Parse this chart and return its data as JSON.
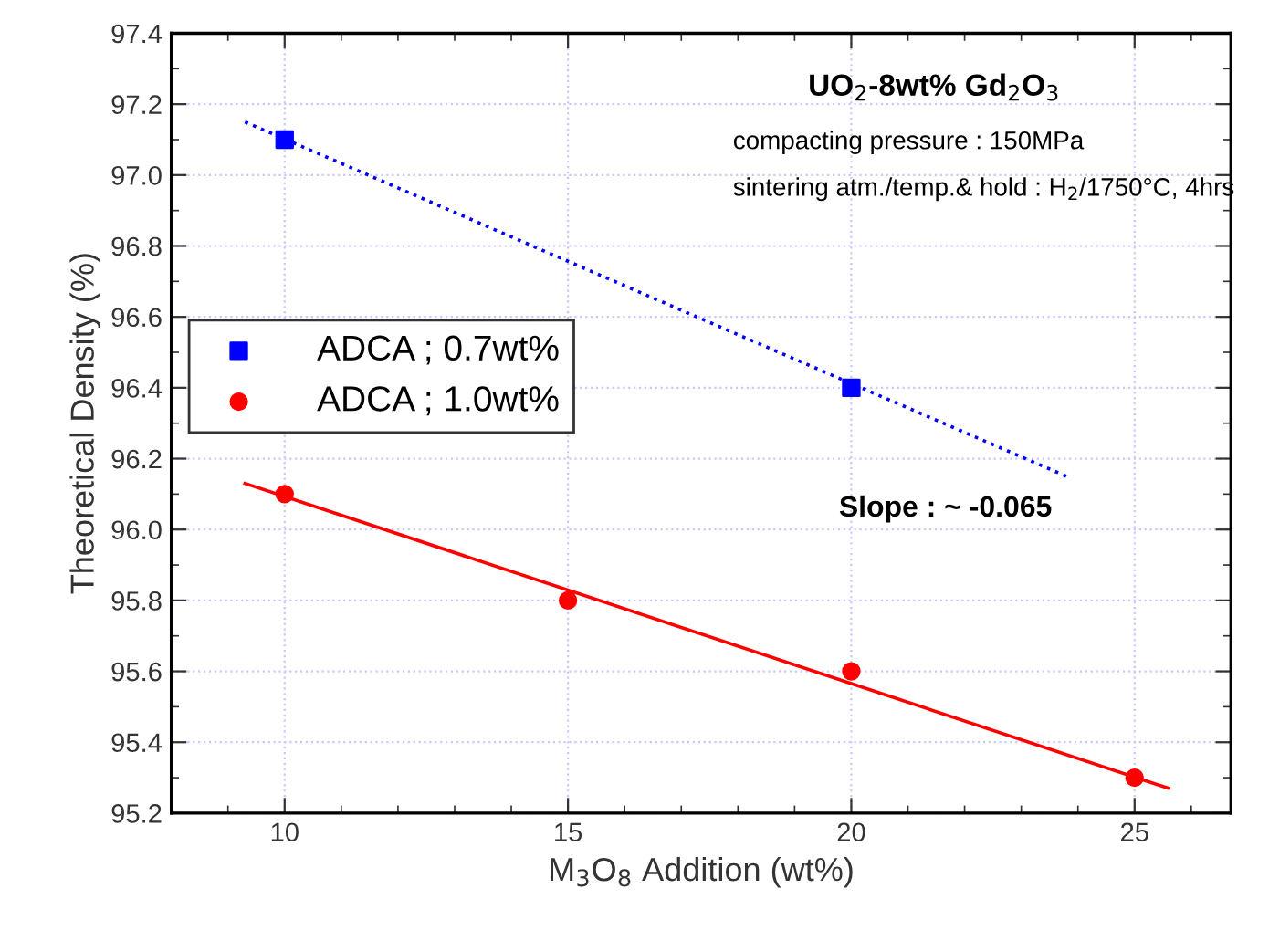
{
  "chart_data": {
    "type": "scatter",
    "xlabel": "M$_{3}$O$_{8}$ Addition (wt%)",
    "ylabel": "Theoretical Density (%)",
    "xlim": [
      8,
      26.7
    ],
    "xticks": [
      10,
      15,
      20,
      25
    ],
    "ylim": [
      95.2,
      97.4
    ],
    "yticks": [
      95.2,
      95.4,
      95.6,
      95.8,
      {
        "value": 96,
        "label": "96.0"
      },
      96.2,
      96.4,
      96.6,
      96.8,
      {
        "value": 97,
        "label": "97.0"
      },
      97.2,
      97.4
    ],
    "grid": true,
    "legend": "left",
    "series": [
      {
        "name": "ADCA ; 0.7wt%",
        "color": "#0000ff",
        "marker": "square",
        "x": [
          10,
          20
        ],
        "values": [
          97.1,
          96.4
        ]
      },
      {
        "name": "ADCA ; 1.0wt%",
        "color": "#ff0000",
        "marker": "circle",
        "x": [
          10,
          15,
          20,
          25
        ],
        "values": [
          96.1,
          95.8,
          95.6,
          95.3
        ]
      },
      {
        "type": "line",
        "color": "#0000ff",
        "line_style": "dotted",
        "x": [
          9.3,
          23.8
        ],
        "values": [
          97.15,
          96.15
        ]
      },
      {
        "type": "line",
        "color": "#ff0000",
        "line_style": "solid",
        "x": [
          9.3,
          25.6
        ],
        "values": [
          96.13,
          95.27
        ]
      }
    ],
    "annotations": [
      "UO$_{2}$-8wt% Gd$_{2}$O$_{3}$",
      "compacting pressure : 150MPa",
      "sintering atm./temp.& hold : H$_{2}$/1750°C, 4hrs",
      "Slope : ~ -0.065"
    ]
  }
}
